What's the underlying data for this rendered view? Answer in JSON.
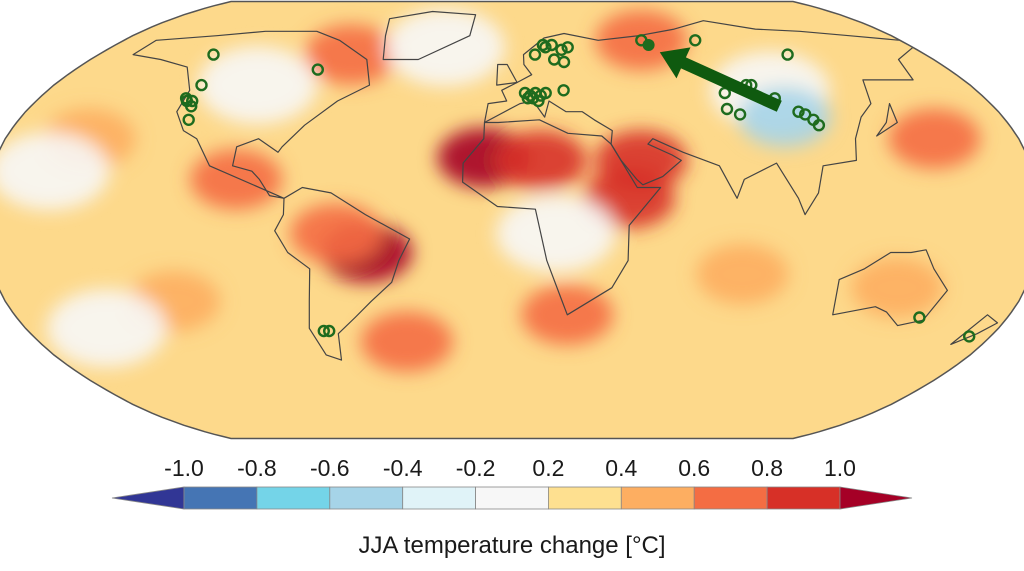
{
  "map": {
    "projection": "Robinson",
    "variable": "JJA temperature change",
    "background_color": "#FDD98B",
    "land_outline_color": "#444444",
    "marker_color": "#1E6B1E",
    "arrow_color": "#0F5A0F",
    "anomaly_patches": [
      {
        "lon": -10,
        "lat": 23,
        "value": 1.0
      },
      {
        "lon": 10,
        "lat": 22,
        "value": 0.9
      },
      {
        "lon": 45,
        "lat": 22,
        "value": 0.9
      },
      {
        "lon": 40,
        "lat": 8,
        "value": 0.8
      },
      {
        "lon": -50,
        "lat": -12,
        "value": 1.0
      },
      {
        "lon": -60,
        "lat": -5,
        "value": 0.7
      },
      {
        "lon": -95,
        "lat": 15,
        "value": 0.7
      },
      {
        "lon": -70,
        "lat": 62,
        "value": 0.7
      },
      {
        "lon": 60,
        "lat": 68,
        "value": 0.7
      },
      {
        "lon": 135,
        "lat": -25,
        "value": 0.5
      },
      {
        "lon": -40,
        "lat": -45,
        "value": 0.7
      },
      {
        "lon": 20,
        "lat": -35,
        "value": 0.6
      },
      {
        "lon": 150,
        "lat": 30,
        "value": 0.6
      },
      {
        "lon": -150,
        "lat": 30,
        "value": 0.5
      },
      {
        "lon": 80,
        "lat": -20,
        "value": 0.5
      },
      {
        "lon": -120,
        "lat": -30,
        "value": 0.5
      },
      {
        "lon": 100,
        "lat": 48,
        "value": 0.1
      },
      {
        "lon": -100,
        "lat": 50,
        "value": 0.1
      },
      {
        "lon": 100,
        "lat": 38,
        "value": -0.3
      },
      {
        "lon": -30,
        "lat": 65,
        "value": 0.1
      },
      {
        "lon": -160,
        "lat": 18,
        "value": 0.1
      },
      {
        "lon": 15,
        "lat": -5,
        "value": 0.1
      },
      {
        "lon": -150,
        "lat": -40,
        "value": 0.1
      }
    ],
    "sites": [
      {
        "lon": -130,
        "lat": 62
      },
      {
        "lon": -122,
        "lat": 50
      },
      {
        "lon": -124,
        "lat": 45
      },
      {
        "lon": -123,
        "lat": 44
      },
      {
        "lon": -121,
        "lat": 44
      },
      {
        "lon": -120,
        "lat": 42
      },
      {
        "lon": -118,
        "lat": 37
      },
      {
        "lon": -80,
        "lat": 56
      },
      {
        "lon": 10,
        "lat": 62
      },
      {
        "lon": 14,
        "lat": 66
      },
      {
        "lon": 15,
        "lat": 65
      },
      {
        "lon": 18,
        "lat": 66
      },
      {
        "lon": 22,
        "lat": 64
      },
      {
        "lon": 25,
        "lat": 65
      },
      {
        "lon": 18,
        "lat": 60
      },
      {
        "lon": 22,
        "lat": 59
      },
      {
        "lon": 5,
        "lat": 47
      },
      {
        "lon": 7,
        "lat": 46
      },
      {
        "lon": 9,
        "lat": 47
      },
      {
        "lon": 11,
        "lat": 46
      },
      {
        "lon": 13,
        "lat": 47
      },
      {
        "lon": 6,
        "lat": 45
      },
      {
        "lon": 8,
        "lat": 45
      },
      {
        "lon": 10,
        "lat": 44
      },
      {
        "lon": 20,
        "lat": 48
      },
      {
        "lon": 60,
        "lat": 68
      },
      {
        "lon": 85,
        "lat": 68
      },
      {
        "lon": 120,
        "lat": 62
      },
      {
        "lon": 92,
        "lat": 50
      },
      {
        "lon": 94,
        "lat": 50
      },
      {
        "lon": 82,
        "lat": 47
      },
      {
        "lon": 80,
        "lat": 41
      },
      {
        "lon": 84,
        "lat": 39
      },
      {
        "lon": 100,
        "lat": 45
      },
      {
        "lon": 106,
        "lat": 40
      },
      {
        "lon": 108,
        "lat": 39
      },
      {
        "lon": 110,
        "lat": 37
      },
      {
        "lon": 111,
        "lat": 35
      },
      {
        "lon": -70,
        "lat": -41
      },
      {
        "lon": -68,
        "lat": -41
      },
      {
        "lon": 148,
        "lat": -36
      },
      {
        "lon": 172,
        "lat": -43
      }
    ],
    "highlight_site": {
      "lon": 62,
      "lat": 66
    },
    "arrow": {
      "from": {
        "lon": 100,
        "lat": 42
      },
      "to": {
        "lon": 65,
        "lat": 63
      }
    }
  },
  "colorbar": {
    "title": "JJA temperature change [°C]",
    "tick_labels": [
      "-1.0",
      "-0.8",
      "-0.6",
      "-0.4",
      "-0.2",
      "0.2",
      "0.4",
      "0.6",
      "0.8",
      "1.0"
    ],
    "bins": [
      {
        "color": "#313695"
      },
      {
        "color": "#4575B4"
      },
      {
        "color": "#74D4E8"
      },
      {
        "color": "#A6D4E8"
      },
      {
        "color": "#E0F3F8"
      },
      {
        "color": "#F7F7F7"
      },
      {
        "color": "#FEE090"
      },
      {
        "color": "#FDAE61"
      },
      {
        "color": "#F46D43"
      },
      {
        "color": "#D73027"
      },
      {
        "color": "#A50026"
      }
    ]
  }
}
